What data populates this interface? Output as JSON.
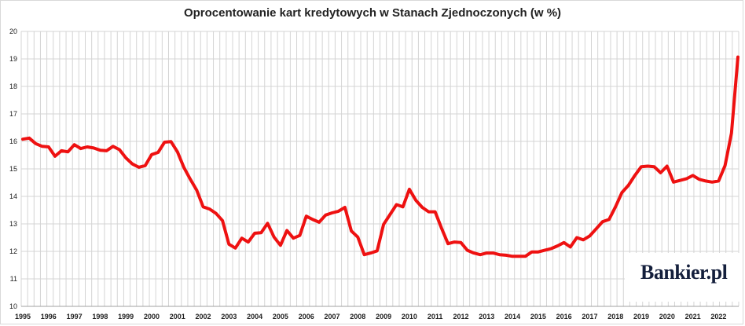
{
  "chart_data": {
    "type": "line",
    "title": "Oprocentowanie kart kredytowych w Stanach Zjednoczonych (w %)",
    "xlabel": "",
    "ylabel": "",
    "ylim": [
      10,
      20
    ],
    "yticks": [
      10,
      11,
      12,
      13,
      14,
      15,
      16,
      17,
      18,
      19,
      20
    ],
    "xticks": [
      "1995",
      "1996",
      "1997",
      "1998",
      "1999",
      "2000",
      "2001",
      "2002",
      "2003",
      "2004",
      "2005",
      "2006",
      "2007",
      "2008",
      "2009",
      "2010",
      "2011",
      "2012",
      "2013",
      "2014",
      "2015",
      "2016",
      "2017",
      "2018",
      "2019",
      "2020",
      "2021",
      "2022"
    ],
    "grid": true,
    "line_color": "#ee1111",
    "series": [
      {
        "values": [
          16.08,
          16.12,
          15.92,
          15.82,
          15.8,
          15.46,
          15.66,
          15.62,
          15.88,
          15.74,
          15.8,
          15.76,
          15.68,
          15.66,
          15.82,
          15.7,
          15.4,
          15.18,
          15.06,
          15.12,
          15.52,
          15.6,
          15.97,
          15.99,
          15.62,
          15.05,
          14.62,
          14.22,
          13.62,
          13.54,
          13.38,
          13.12,
          12.26,
          12.12,
          12.48,
          12.34,
          12.66,
          12.68,
          13.02,
          12.52,
          12.22,
          12.76,
          12.48,
          12.58,
          13.28,
          13.16,
          13.06,
          13.32,
          13.4,
          13.46,
          13.6,
          12.74,
          12.52,
          11.88,
          11.94,
          12.02,
          12.98,
          13.34,
          13.7,
          13.62,
          14.26,
          13.86,
          13.6,
          13.44,
          13.44,
          12.84,
          12.28,
          12.34,
          12.32,
          12.04,
          11.94,
          11.88,
          11.94,
          11.94,
          11.88,
          11.86,
          11.82,
          11.82,
          11.82,
          11.98,
          11.98,
          12.04,
          12.1,
          12.2,
          12.32,
          12.16,
          12.5,
          12.42,
          12.56,
          12.82,
          13.08,
          13.16,
          13.62,
          14.14,
          14.4,
          14.76,
          15.08,
          15.1,
          15.08,
          14.86,
          15.1,
          14.52,
          14.58,
          14.64,
          14.76,
          14.62,
          14.56,
          14.52,
          14.56,
          15.12,
          16.3,
          19.07
        ]
      }
    ]
  },
  "logo": {
    "text": "Bankier.pl"
  }
}
